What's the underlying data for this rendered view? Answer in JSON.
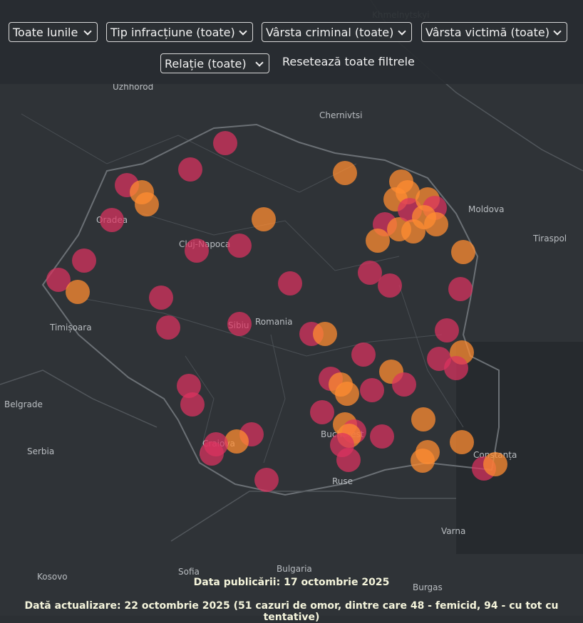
{
  "filters": [
    "Toate lunile",
    "Tip infracțiune (toate)",
    "Vârsta criminal (toate)",
    "Vârsta victimă (toate)",
    "Relație (toate)"
  ],
  "reset": "Resetează toate filtrele",
  "map_labels": [
    {
      "name": "Khmelnytskyi"
    },
    {
      "name": "Uzhhorod"
    },
    {
      "name": "Chernivtsi"
    },
    {
      "name": "Moldova"
    },
    {
      "name": "Tiraspol"
    },
    {
      "name": "Oradea"
    },
    {
      "name": "Cluj-Napoca"
    },
    {
      "name": "Romania"
    },
    {
      "name": "Sibiu"
    },
    {
      "name": "Timișoara"
    },
    {
      "name": "Belgrade"
    },
    {
      "name": "Serbia"
    },
    {
      "name": "Craiova"
    },
    {
      "name": "Bucharest"
    },
    {
      "name": "Ruse"
    },
    {
      "name": "Constanța"
    },
    {
      "name": "Varna"
    },
    {
      "name": "Bulgaria"
    },
    {
      "name": "Sofia"
    },
    {
      "name": "Kosovo"
    },
    {
      "name": "Burgas"
    }
  ],
  "footer": {
    "published": "Data publicării: 17 octombrie 2025",
    "updated": "Dată actualizare: 22 octombrie 2025 (51 cazuri de omor, dintre care 48 - femicid, 94 - cu tot cu tentative)"
  }
}
